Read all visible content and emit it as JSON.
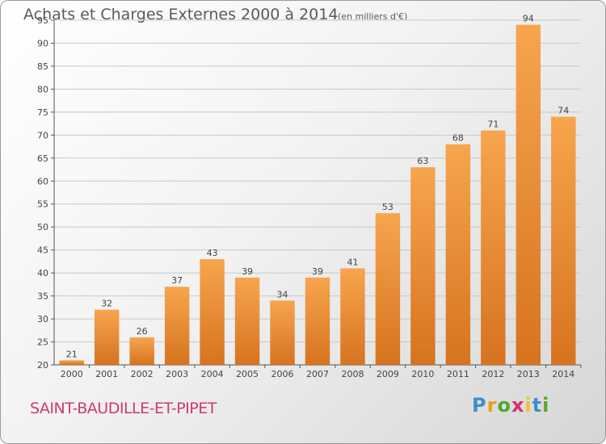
{
  "header": {
    "title": "Achats et Charges Externes 2000 à 2014",
    "subtitle": "(en milliers d'€)"
  },
  "footer": {
    "commune": "SAINT-BAUDILLE-ET-PIPET",
    "logo_letters": [
      "P",
      "r",
      "o",
      "x",
      "i",
      "t",
      "i"
    ],
    "logo_colors": [
      "#3a8fd0",
      "#e8a317",
      "#55a630",
      "#d62f6a",
      "#f2c230",
      "#3a8fd0",
      "#55a630"
    ]
  },
  "colors": {
    "bar_top": "#f7a54e",
    "bar_bottom": "#d7731f",
    "grid": "#c8c8c8",
    "axis": "#555555"
  },
  "chart_data": {
    "type": "bar",
    "categories": [
      "2000",
      "2001",
      "2002",
      "2003",
      "2004",
      "2005",
      "2006",
      "2007",
      "2008",
      "2009",
      "2010",
      "2011",
      "2012",
      "2013",
      "2014"
    ],
    "values": [
      21,
      32,
      26,
      37,
      43,
      39,
      34,
      39,
      41,
      53,
      63,
      68,
      71,
      94,
      74
    ],
    "ylim": [
      20,
      95
    ],
    "yticks": [
      20,
      25,
      30,
      35,
      40,
      45,
      50,
      55,
      60,
      65,
      70,
      75,
      80,
      85,
      90,
      95
    ],
    "grid": true,
    "data_labels": true
  }
}
